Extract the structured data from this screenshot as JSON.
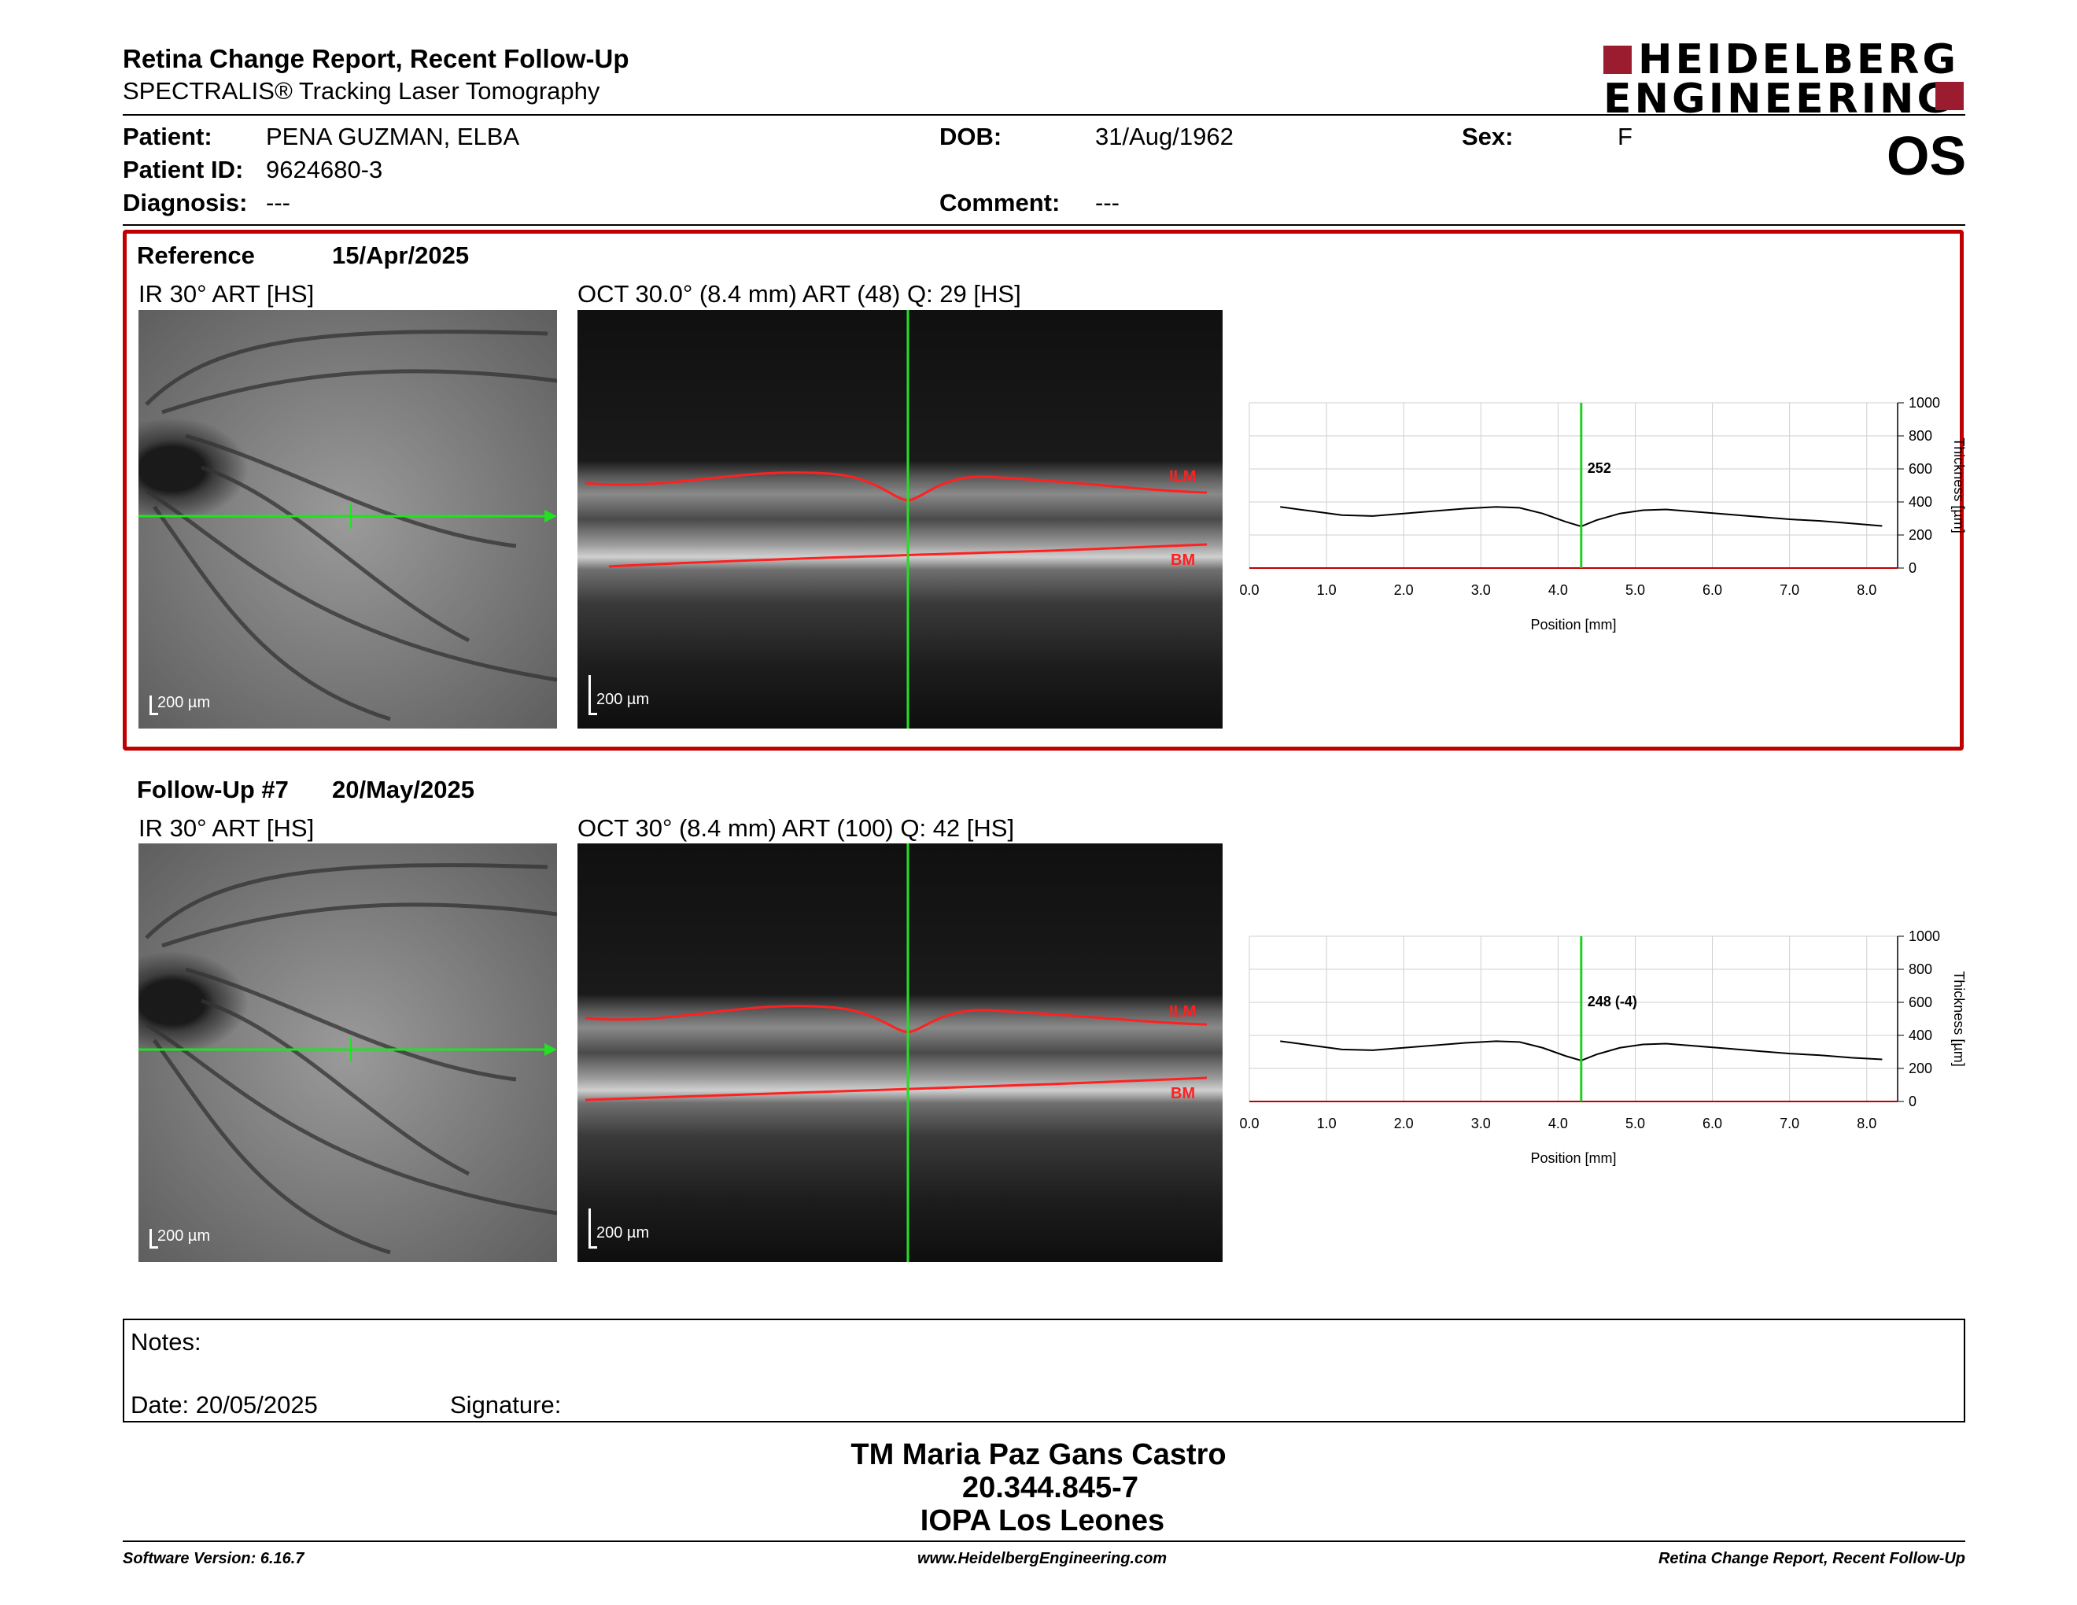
{
  "header": {
    "title": "Retina Change Report, Recent Follow-Up",
    "subtitle": "SPECTRALIS® Tracking Laser Tomography",
    "logo_line1": "HEIDELBERG",
    "logo_line2": "ENGINEERING",
    "eye": "OS"
  },
  "patient": {
    "patient_label": "Patient:",
    "patient_value": "PENA GUZMAN, ELBA",
    "id_label": "Patient ID:",
    "id_value": "9624680-3",
    "diagnosis_label": "Diagnosis:",
    "diagnosis_value": "---",
    "dob_label": "DOB:",
    "dob_value": "31/Aug/1962",
    "comment_label": "Comment:",
    "comment_value": "---",
    "sex_label": "Sex:",
    "sex_value": "F"
  },
  "reference": {
    "label": "Reference",
    "date": "15/Apr/2025",
    "ir_label": "IR 30° ART [HS]",
    "oct_label": "OCT 30.0° (8.4 mm) ART (48) Q: 29 [HS]",
    "scale": "200 µm",
    "ilm": "ILM",
    "bm": "BM",
    "accent": "#c00000"
  },
  "followup": {
    "label": "Follow-Up #7",
    "date": "20/May/2025",
    "ir_label": "IR 30° ART [HS]",
    "oct_label": "OCT 30° (8.4 mm) ART (100) Q: 42 [HS]",
    "scale": "200 µm",
    "ilm": "ILM",
    "bm": "BM"
  },
  "chart_data": [
    {
      "type": "line",
      "xlabel": "Position [mm]",
      "ylabel": "Thickness [µm]",
      "xlim": [
        0,
        8.4
      ],
      "ylim": [
        0,
        1000
      ],
      "xticks": [
        "0.0",
        "1.0",
        "2.0",
        "3.0",
        "4.0",
        "5.0",
        "6.0",
        "7.0",
        "8.0"
      ],
      "yticks": [
        "0",
        "200",
        "400",
        "600",
        "800",
        "1000"
      ],
      "grid": true,
      "marker_x": 4.3,
      "marker_label": "252",
      "x": [
        0.4,
        0.8,
        1.2,
        1.6,
        2.0,
        2.4,
        2.8,
        3.2,
        3.5,
        3.8,
        4.1,
        4.3,
        4.5,
        4.8,
        5.1,
        5.4,
        5.8,
        6.2,
        6.6,
        7.0,
        7.4,
        7.8,
        8.2
      ],
      "values": [
        370,
        345,
        320,
        315,
        330,
        345,
        360,
        370,
        365,
        330,
        280,
        252,
        290,
        330,
        350,
        355,
        340,
        325,
        310,
        295,
        285,
        270,
        255
      ]
    },
    {
      "type": "line",
      "xlabel": "Position [mm]",
      "ylabel": "Thickness [µm]",
      "xlim": [
        0,
        8.4
      ],
      "ylim": [
        0,
        1000
      ],
      "xticks": [
        "0.0",
        "1.0",
        "2.0",
        "3.0",
        "4.0",
        "5.0",
        "6.0",
        "7.0",
        "8.0"
      ],
      "yticks": [
        "0",
        "200",
        "400",
        "600",
        "800",
        "1000"
      ],
      "grid": true,
      "marker_x": 4.3,
      "marker_label": "248 (-4)",
      "x": [
        0.4,
        0.8,
        1.2,
        1.6,
        2.0,
        2.4,
        2.8,
        3.2,
        3.5,
        3.8,
        4.1,
        4.3,
        4.5,
        4.8,
        5.1,
        5.4,
        5.8,
        6.2,
        6.6,
        7.0,
        7.4,
        7.8,
        8.2
      ],
      "values": [
        365,
        340,
        315,
        310,
        325,
        340,
        355,
        365,
        360,
        325,
        275,
        248,
        285,
        325,
        345,
        350,
        335,
        320,
        305,
        290,
        280,
        265,
        255
      ]
    }
  ],
  "notes": {
    "label": "Notes:",
    "date": "Date: 20/05/2025",
    "signature": "Signature:"
  },
  "signer": {
    "name": "TM Maria Paz Gans Castro",
    "rut": "20.344.845-7",
    "clinic": "IOPA Los Leones"
  },
  "footer": {
    "software": "Software Version: 6.16.7",
    "website": "www.HeidelbergEngineering.com",
    "report": "Retina Change Report, Recent Follow-Up"
  }
}
